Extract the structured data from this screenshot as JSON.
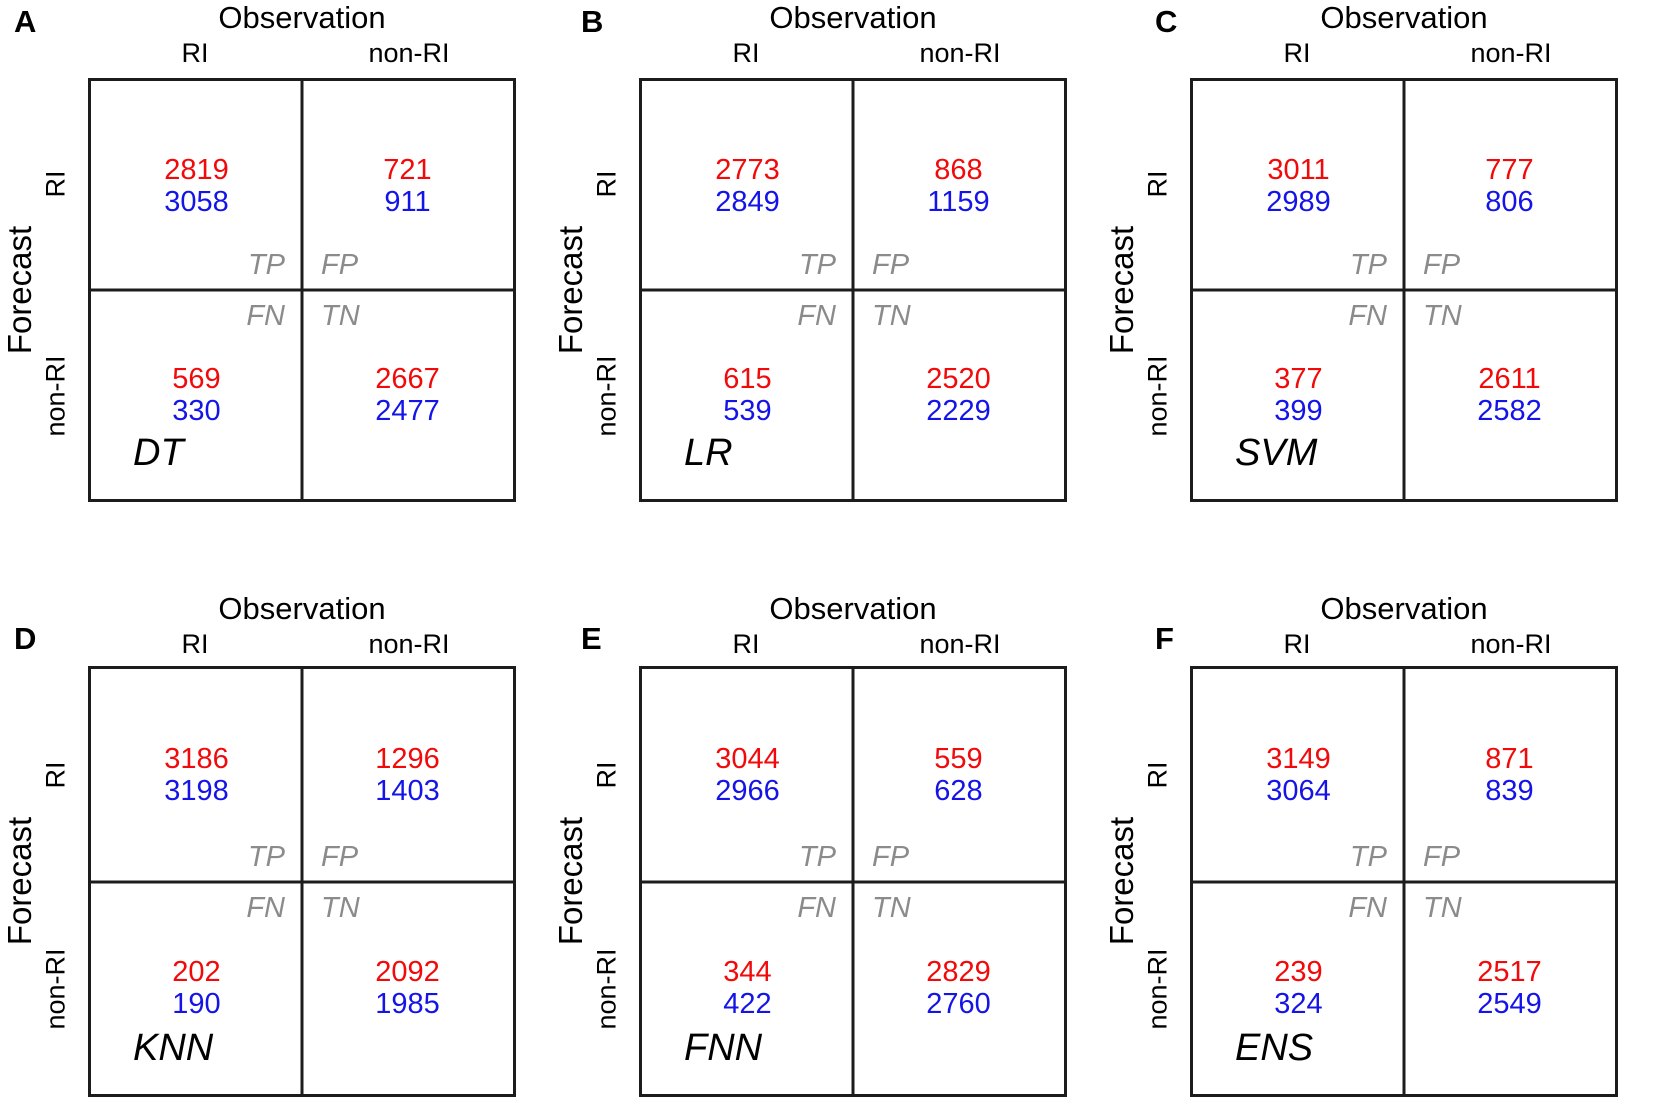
{
  "figure": {
    "col_axis": "Observation",
    "row_axis": "Forecast",
    "col_categories": [
      "RI",
      "non-RI"
    ],
    "row_categories": [
      "RI",
      "non-RI"
    ],
    "quadrant_labels": {
      "tp": "TP",
      "fp": "FP",
      "fn": "FN",
      "tn": "TN"
    },
    "colors": {
      "red_series": "#f20a0a",
      "blue_series": "#1414e8",
      "quadrant_label_gray": "#8b8b8b",
      "line": "#1c1c1c"
    }
  },
  "panels": [
    {
      "letter": "A",
      "model": "DT",
      "tp_red": "2819",
      "tp_blue": "3058",
      "fp_red": "721",
      "fp_blue": "911",
      "fn_red": "569",
      "fn_blue": "330",
      "tn_red": "2667",
      "tn_blue": "2477"
    },
    {
      "letter": "B",
      "model": "LR",
      "tp_red": "2773",
      "tp_blue": "2849",
      "fp_red": "868",
      "fp_blue": "1159",
      "fn_red": "615",
      "fn_blue": "539",
      "tn_red": "2520",
      "tn_blue": "2229"
    },
    {
      "letter": "C",
      "model": "SVM",
      "tp_red": "3011",
      "tp_blue": "2989",
      "fp_red": "777",
      "fp_blue": "806",
      "fn_red": "377",
      "fn_blue": "399",
      "tn_red": "2611",
      "tn_blue": "2582"
    },
    {
      "letter": "D",
      "model": "KNN",
      "tp_red": "3186",
      "tp_blue": "3198",
      "fp_red": "1296",
      "fp_blue": "1403",
      "fn_red": "202",
      "fn_blue": "190",
      "tn_red": "2092",
      "tn_blue": "1985"
    },
    {
      "letter": "E",
      "model": "FNN",
      "tp_red": "3044",
      "tp_blue": "2966",
      "fp_red": "559",
      "fp_blue": "628",
      "fn_red": "344",
      "fn_blue": "422",
      "tn_red": "2829",
      "tn_blue": "2760"
    },
    {
      "letter": "F",
      "model": "ENS",
      "tp_red": "3149",
      "tp_blue": "3064",
      "fp_red": "871",
      "fp_blue": "839",
      "fn_red": "239",
      "fn_blue": "324",
      "tn_red": "2517",
      "tn_blue": "2549"
    }
  ],
  "chart_data": [
    {
      "type": "heatmap",
      "panel": "A",
      "title": "Observation",
      "xlabel": "Observation",
      "ylabel": "Forecast",
      "model": "DT",
      "columns": [
        "RI",
        "non-RI"
      ],
      "rows": [
        "RI",
        "non-RI"
      ],
      "cell_roles": [
        [
          "TP",
          "FP"
        ],
        [
          "FN",
          "TN"
        ]
      ],
      "series": [
        {
          "name": "red",
          "matrix": [
            [
              2819,
              721
            ],
            [
              569,
              2667
            ]
          ]
        },
        {
          "name": "blue",
          "matrix": [
            [
              3058,
              911
            ],
            [
              330,
              2477
            ]
          ]
        }
      ]
    },
    {
      "type": "heatmap",
      "panel": "B",
      "title": "Observation",
      "xlabel": "Observation",
      "ylabel": "Forecast",
      "model": "LR",
      "columns": [
        "RI",
        "non-RI"
      ],
      "rows": [
        "RI",
        "non-RI"
      ],
      "cell_roles": [
        [
          "TP",
          "FP"
        ],
        [
          "FN",
          "TN"
        ]
      ],
      "series": [
        {
          "name": "red",
          "matrix": [
            [
              2773,
              868
            ],
            [
              615,
              2520
            ]
          ]
        },
        {
          "name": "blue",
          "matrix": [
            [
              2849,
              1159
            ],
            [
              539,
              2229
            ]
          ]
        }
      ]
    },
    {
      "type": "heatmap",
      "panel": "C",
      "title": "Observation",
      "xlabel": "Observation",
      "ylabel": "Forecast",
      "model": "SVM",
      "columns": [
        "RI",
        "non-RI"
      ],
      "rows": [
        "RI",
        "non-RI"
      ],
      "cell_roles": [
        [
          "TP",
          "FP"
        ],
        [
          "FN",
          "TN"
        ]
      ],
      "series": [
        {
          "name": "red",
          "matrix": [
            [
              3011,
              777
            ],
            [
              377,
              2611
            ]
          ]
        },
        {
          "name": "blue",
          "matrix": [
            [
              2989,
              806
            ],
            [
              399,
              2582
            ]
          ]
        }
      ]
    },
    {
      "type": "heatmap",
      "panel": "D",
      "title": "Observation",
      "xlabel": "Observation",
      "ylabel": "Forecast",
      "model": "KNN",
      "columns": [
        "RI",
        "non-RI"
      ],
      "rows": [
        "RI",
        "non-RI"
      ],
      "cell_roles": [
        [
          "TP",
          "FP"
        ],
        [
          "FN",
          "TN"
        ]
      ],
      "series": [
        {
          "name": "red",
          "matrix": [
            [
              3186,
              1296
            ],
            [
              202,
              2092
            ]
          ]
        },
        {
          "name": "blue",
          "matrix": [
            [
              3198,
              1403
            ],
            [
              190,
              1985
            ]
          ]
        }
      ]
    },
    {
      "type": "heatmap",
      "panel": "E",
      "title": "Observation",
      "xlabel": "Observation",
      "ylabel": "Forecast",
      "model": "FNN",
      "columns": [
        "RI",
        "non-RI"
      ],
      "rows": [
        "RI",
        "non-RI"
      ],
      "cell_roles": [
        [
          "TP",
          "FP"
        ],
        [
          "FN",
          "TN"
        ]
      ],
      "series": [
        {
          "name": "red",
          "matrix": [
            [
              3044,
              559
            ],
            [
              344,
              2829
            ]
          ]
        },
        {
          "name": "blue",
          "matrix": [
            [
              2966,
              628
            ],
            [
              422,
              2760
            ]
          ]
        }
      ]
    },
    {
      "type": "heatmap",
      "panel": "F",
      "title": "Observation",
      "xlabel": "Observation",
      "ylabel": "Forecast",
      "model": "ENS",
      "columns": [
        "RI",
        "non-RI"
      ],
      "rows": [
        "RI",
        "non-RI"
      ],
      "cell_roles": [
        [
          "TP",
          "FP"
        ],
        [
          "FN",
          "TN"
        ]
      ],
      "series": [
        {
          "name": "red",
          "matrix": [
            [
              3149,
              871
            ],
            [
              239,
              2517
            ]
          ]
        },
        {
          "name": "blue",
          "matrix": [
            [
              3064,
              839
            ],
            [
              324,
              2549
            ]
          ]
        }
      ]
    }
  ]
}
